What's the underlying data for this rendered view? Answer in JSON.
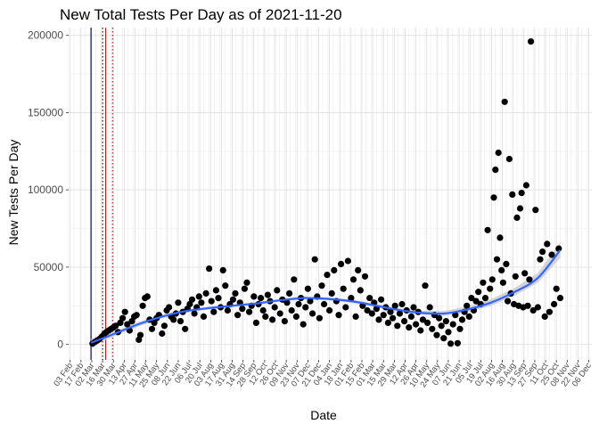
{
  "chart_data": {
    "type": "scatter",
    "title": "New Total Tests Per Day as of 2021-11-20",
    "xlabel": "Date",
    "ylabel": "New Tests Per Day",
    "x_axis": "date",
    "xlim": [
      "2020-02-01",
      "2021-12-10"
    ],
    "ylim": [
      -10000,
      205000
    ],
    "y_ticks": [
      0,
      50000,
      100000,
      150000,
      200000
    ],
    "y_tick_labels": [
      "0",
      "50000",
      "100000",
      "150000",
      "200000"
    ],
    "x_tick_dates": [
      "2020-02-03",
      "2020-02-17",
      "2020-03-02",
      "2020-03-16",
      "2020-03-30",
      "2020-04-13",
      "2020-04-27",
      "2020-05-11",
      "2020-05-25",
      "2020-06-08",
      "2020-06-22",
      "2020-07-06",
      "2020-07-20",
      "2020-08-03",
      "2020-08-17",
      "2020-08-31",
      "2020-09-14",
      "2020-09-28",
      "2020-10-12",
      "2020-10-26",
      "2020-11-09",
      "2020-11-23",
      "2020-12-07",
      "2020-12-21",
      "2021-01-04",
      "2021-01-18",
      "2021-02-01",
      "2021-02-15",
      "2021-03-01",
      "2021-03-15",
      "2021-03-29",
      "2021-04-12",
      "2021-04-26",
      "2021-05-10",
      "2021-05-24",
      "2021-06-07",
      "2021-06-21",
      "2021-07-05",
      "2021-07-19",
      "2021-08-02",
      "2021-08-16",
      "2021-08-30",
      "2021-09-13",
      "2021-09-27",
      "2021-10-11",
      "2021-10-25",
      "2021-11-08",
      "2021-11-22",
      "2021-12-06"
    ],
    "x_tick_labels": [
      "03 Feb",
      "17 Feb",
      "02 Mar",
      "16 Mar",
      "30 Mar",
      "13 Apr",
      "27 Apr",
      "11 May",
      "25 May",
      "08 Jun",
      "22 Jun",
      "06 Jul",
      "20 Jul",
      "03 Aug",
      "17 Aug",
      "31 Aug",
      "14 Sep",
      "28 Sep",
      "12 Oct",
      "26 Oct",
      "09 Nov",
      "23 Nov",
      "07 Dec",
      "21 Dec",
      "04 Jan",
      "18 Jan",
      "01 Feb",
      "15 Feb",
      "01 Mar",
      "15 Mar",
      "29 Mar",
      "12 Apr",
      "26 Apr",
      "10 May",
      "24 May",
      "07 Jun",
      "21 Jun",
      "05 Jul",
      "19 Jul",
      "02 Aug",
      "16 Aug",
      "30 Aug",
      "13 Sep",
      "27 Sep",
      "11 Oct",
      "25 Oct",
      "08 Nov",
      "22 Nov",
      "06 Dec"
    ],
    "grid": true,
    "vertical_lines": [
      {
        "date": "2020-03-01",
        "color": "#00008b",
        "style": "solid"
      },
      {
        "date": "2020-03-16",
        "color": "#000000",
        "style": "dotted"
      },
      {
        "date": "2020-03-20",
        "color": "#ff0000",
        "style": "solid"
      },
      {
        "date": "2020-03-29",
        "color": "#ff0000",
        "style": "dotted"
      }
    ],
    "points": [
      [
        "2020-03-03",
        500
      ],
      [
        "2020-03-06",
        1500
      ],
      [
        "2020-03-09",
        2500
      ],
      [
        "2020-03-12",
        3500
      ],
      [
        "2020-03-15",
        5000
      ],
      [
        "2020-03-18",
        6500
      ],
      [
        "2020-03-21",
        8000
      ],
      [
        "2020-03-24",
        9000
      ],
      [
        "2020-03-27",
        10000
      ],
      [
        "2020-03-30",
        11000
      ],
      [
        "2020-04-02",
        12000
      ],
      [
        "2020-04-05",
        8000
      ],
      [
        "2020-04-08",
        14000
      ],
      [
        "2020-04-11",
        17000
      ],
      [
        "2020-04-14",
        21000
      ],
      [
        "2020-04-17",
        13000
      ],
      [
        "2020-04-20",
        9000
      ],
      [
        "2020-04-23",
        15000
      ],
      [
        "2020-04-26",
        18000
      ],
      [
        "2020-04-29",
        19000
      ],
      [
        "2020-05-02",
        3000
      ],
      [
        "2020-05-04",
        6000
      ],
      [
        "2020-05-07",
        25000
      ],
      [
        "2020-05-10",
        30000
      ],
      [
        "2020-05-13",
        31000
      ],
      [
        "2020-05-16",
        16000
      ],
      [
        "2020-05-19",
        10000
      ],
      [
        "2020-05-22",
        14000
      ],
      [
        "2020-05-25",
        17000
      ],
      [
        "2020-05-28",
        19000
      ],
      [
        "2020-06-01",
        7000
      ],
      [
        "2020-06-04",
        12000
      ],
      [
        "2020-06-07",
        22000
      ],
      [
        "2020-06-10",
        24000
      ],
      [
        "2020-06-13",
        18000
      ],
      [
        "2020-06-16",
        16000
      ],
      [
        "2020-06-19",
        20000
      ],
      [
        "2020-06-22",
        27000
      ],
      [
        "2020-06-25",
        15000
      ],
      [
        "2020-06-28",
        21000
      ],
      [
        "2020-07-01",
        10000
      ],
      [
        "2020-07-04",
        23000
      ],
      [
        "2020-07-07",
        26000
      ],
      [
        "2020-07-10",
        29000
      ],
      [
        "2020-07-13",
        20000
      ],
      [
        "2020-07-16",
        24000
      ],
      [
        "2020-07-19",
        31000
      ],
      [
        "2020-07-22",
        27000
      ],
      [
        "2020-07-25",
        18000
      ],
      [
        "2020-07-28",
        33000
      ],
      [
        "2020-08-01",
        49000
      ],
      [
        "2020-08-04",
        28000
      ],
      [
        "2020-08-07",
        21000
      ],
      [
        "2020-08-10",
        35000
      ],
      [
        "2020-08-13",
        30000
      ],
      [
        "2020-08-16",
        24000
      ],
      [
        "2020-08-19",
        48000
      ],
      [
        "2020-08-22",
        38000
      ],
      [
        "2020-08-25",
        22000
      ],
      [
        "2020-08-28",
        26000
      ],
      [
        "2020-09-01",
        29000
      ],
      [
        "2020-09-04",
        33000
      ],
      [
        "2020-09-07",
        19000
      ],
      [
        "2020-09-10",
        27000
      ],
      [
        "2020-09-13",
        23000
      ],
      [
        "2020-09-16",
        36000
      ],
      [
        "2020-09-19",
        40000
      ],
      [
        "2020-09-22",
        21000
      ],
      [
        "2020-09-25",
        25000
      ],
      [
        "2020-09-28",
        31000
      ],
      [
        "2020-10-01",
        14000
      ],
      [
        "2020-10-04",
        26000
      ],
      [
        "2020-10-07",
        30000
      ],
      [
        "2020-10-10",
        22000
      ],
      [
        "2020-10-13",
        18000
      ],
      [
        "2020-10-16",
        32000
      ],
      [
        "2020-10-19",
        28000
      ],
      [
        "2020-10-22",
        16000
      ],
      [
        "2020-10-25",
        24000
      ],
      [
        "2020-10-28",
        35000
      ],
      [
        "2020-11-01",
        20000
      ],
      [
        "2020-11-04",
        29000
      ],
      [
        "2020-11-07",
        15000
      ],
      [
        "2020-11-10",
        27000
      ],
      [
        "2020-11-13",
        33000
      ],
      [
        "2020-11-16",
        22000
      ],
      [
        "2020-11-19",
        42000
      ],
      [
        "2020-11-22",
        18000
      ],
      [
        "2020-11-25",
        26000
      ],
      [
        "2020-11-28",
        30000
      ],
      [
        "2020-12-01",
        13000
      ],
      [
        "2020-12-04",
        24000
      ],
      [
        "2020-12-07",
        36000
      ],
      [
        "2020-12-10",
        28000
      ],
      [
        "2020-12-13",
        20000
      ],
      [
        "2020-12-16",
        55000
      ],
      [
        "2020-12-19",
        31000
      ],
      [
        "2020-12-22",
        17000
      ],
      [
        "2020-12-25",
        38000
      ],
      [
        "2020-12-28",
        26000
      ],
      [
        "2021-01-01",
        45000
      ],
      [
        "2021-01-04",
        22000
      ],
      [
        "2021-01-07",
        33000
      ],
      [
        "2021-01-10",
        48000
      ],
      [
        "2021-01-13",
        28000
      ],
      [
        "2021-01-16",
        19000
      ],
      [
        "2021-01-19",
        52000
      ],
      [
        "2021-01-22",
        36000
      ],
      [
        "2021-01-25",
        24000
      ],
      [
        "2021-01-28",
        54000
      ],
      [
        "2021-02-01",
        30000
      ],
      [
        "2021-02-04",
        42000
      ],
      [
        "2021-02-07",
        18000
      ],
      [
        "2021-02-10",
        48000
      ],
      [
        "2021-02-13",
        35000
      ],
      [
        "2021-02-16",
        25000
      ],
      [
        "2021-02-19",
        44000
      ],
      [
        "2021-02-22",
        22000
      ],
      [
        "2021-02-25",
        30000
      ],
      [
        "2021-02-28",
        20000
      ],
      [
        "2021-03-03",
        27000
      ],
      [
        "2021-03-06",
        23000
      ],
      [
        "2021-03-09",
        16000
      ],
      [
        "2021-03-12",
        29000
      ],
      [
        "2021-03-15",
        19000
      ],
      [
        "2021-03-18",
        24000
      ],
      [
        "2021-03-21",
        14000
      ],
      [
        "2021-03-24",
        21000
      ],
      [
        "2021-03-27",
        17000
      ],
      [
        "2021-03-30",
        25000
      ],
      [
        "2021-04-02",
        12000
      ],
      [
        "2021-04-05",
        20000
      ],
      [
        "2021-04-08",
        26000
      ],
      [
        "2021-04-11",
        15000
      ],
      [
        "2021-04-14",
        22000
      ],
      [
        "2021-04-17",
        11000
      ],
      [
        "2021-04-20",
        18000
      ],
      [
        "2021-04-23",
        24000
      ],
      [
        "2021-04-26",
        13000
      ],
      [
        "2021-04-29",
        21000
      ],
      [
        "2021-05-02",
        9000
      ],
      [
        "2021-05-05",
        16000
      ],
      [
        "2021-05-08",
        38000
      ],
      [
        "2021-05-11",
        14000
      ],
      [
        "2021-05-14",
        24000
      ],
      [
        "2021-05-17",
        10000
      ],
      [
        "2021-05-20",
        19000
      ],
      [
        "2021-05-23",
        6000
      ],
      [
        "2021-05-26",
        17000
      ],
      [
        "2021-05-29",
        12000
      ],
      [
        "2021-06-01",
        4000
      ],
      [
        "2021-06-04",
        15000
      ],
      [
        "2021-06-07",
        8000
      ],
      [
        "2021-06-10",
        500
      ],
      [
        "2021-06-13",
        13000
      ],
      [
        "2021-06-16",
        19000
      ],
      [
        "2021-06-19",
        800
      ],
      [
        "2021-06-22",
        10000
      ],
      [
        "2021-06-25",
        16000
      ],
      [
        "2021-06-28",
        21000
      ],
      [
        "2021-07-01",
        25000
      ],
      [
        "2021-07-04",
        18000
      ],
      [
        "2021-07-07",
        30000
      ],
      [
        "2021-07-10",
        22000
      ],
      [
        "2021-07-13",
        28000
      ],
      [
        "2021-07-16",
        34000
      ],
      [
        "2021-07-19",
        26000
      ],
      [
        "2021-07-22",
        40000
      ],
      [
        "2021-07-25",
        30000
      ],
      [
        "2021-07-28",
        74000
      ],
      [
        "2021-07-31",
        36000
      ],
      [
        "2021-08-03",
        42000
      ],
      [
        "2021-08-05",
        95000
      ],
      [
        "2021-08-07",
        113000
      ],
      [
        "2021-08-09",
        55000
      ],
      [
        "2021-08-11",
        124000
      ],
      [
        "2021-08-13",
        69000
      ],
      [
        "2021-08-15",
        48000
      ],
      [
        "2021-08-17",
        40000
      ],
      [
        "2021-08-19",
        157000
      ],
      [
        "2021-08-21",
        52000
      ],
      [
        "2021-08-23",
        28000
      ],
      [
        "2021-08-25",
        120000
      ],
      [
        "2021-08-27",
        33000
      ],
      [
        "2021-08-29",
        97000
      ],
      [
        "2021-08-31",
        26000
      ],
      [
        "2021-09-02",
        44000
      ],
      [
        "2021-09-04",
        82000
      ],
      [
        "2021-09-06",
        25000
      ],
      [
        "2021-09-08",
        88000
      ],
      [
        "2021-09-10",
        98000
      ],
      [
        "2021-09-12",
        24000
      ],
      [
        "2021-09-14",
        46000
      ],
      [
        "2021-09-16",
        103000
      ],
      [
        "2021-09-18",
        25000
      ],
      [
        "2021-09-20",
        42000
      ],
      [
        "2021-09-22",
        196000
      ],
      [
        "2021-09-25",
        22000
      ],
      [
        "2021-09-28",
        87000
      ],
      [
        "2021-10-01",
        24000
      ],
      [
        "2021-10-04",
        55000
      ],
      [
        "2021-10-07",
        60000
      ],
      [
        "2021-10-10",
        18000
      ],
      [
        "2021-10-13",
        65000
      ],
      [
        "2021-10-16",
        21000
      ],
      [
        "2021-10-19",
        58000
      ],
      [
        "2021-10-22",
        26000
      ],
      [
        "2021-10-25",
        36000
      ],
      [
        "2021-10-28",
        62000
      ],
      [
        "2021-10-30",
        30000
      ]
    ],
    "trend": {
      "x": [
        "2020-03-01",
        "2020-04-01",
        "2020-05-01",
        "2020-06-01",
        "2020-07-01",
        "2020-08-01",
        "2020-09-01",
        "2020-10-01",
        "2020-11-01",
        "2020-12-01",
        "2021-01-01",
        "2021-02-01",
        "2021-03-01",
        "2021-04-01",
        "2021-05-01",
        "2021-06-01",
        "2021-07-01",
        "2021-08-01",
        "2021-09-01",
        "2021-10-01",
        "2021-10-30"
      ],
      "y": [
        1000,
        7000,
        13000,
        18000,
        21500,
        23500,
        25000,
        26500,
        28500,
        30000,
        29500,
        28000,
        25500,
        22500,
        20500,
        20000,
        22500,
        27000,
        34000,
        43000,
        61000
      ],
      "ci_low": [
        -1500,
        5500,
        11500,
        16800,
        20500,
        22600,
        24200,
        25700,
        27700,
        29100,
        28500,
        26900,
        24300,
        21300,
        19200,
        18400,
        20600,
        24800,
        31500,
        39800,
        56000
      ],
      "ci_high": [
        3500,
        8500,
        14500,
        19200,
        22500,
        24400,
        25800,
        27300,
        29300,
        30900,
        30500,
        29100,
        26700,
        23700,
        21800,
        21600,
        24400,
        29200,
        36500,
        46200,
        66000
      ],
      "color": "#3366ff",
      "ci_color": "#c8c8c8"
    }
  }
}
